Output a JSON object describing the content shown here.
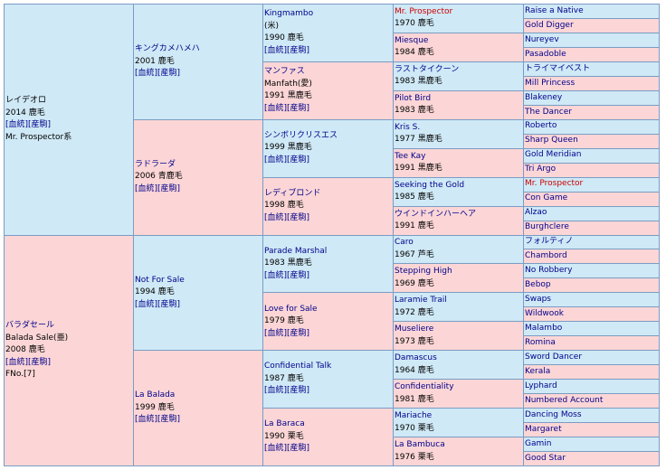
{
  "horse": {
    "name": "レイデオロ",
    "born": "2014 鹿毛",
    "links": "[血統][産駒]",
    "line": "Mr. Prospector系"
  },
  "sire": {
    "name": "キングカメハメハ",
    "born": "2001 鹿毛",
    "links": "[血統][産駒]"
  },
  "sire_sire": {
    "name": "Kingmambo",
    "origin": "(米)",
    "born": "1990 鹿毛",
    "links": "[血統][産駒]"
  },
  "sss": {
    "name": "Mr. Prospector",
    "born": "1970 鹿毛"
  },
  "ssss": {
    "name": "Raise a Native"
  },
  "sssd": {
    "name": "Gold Digger"
  },
  "ssd": {
    "name": "Miesque",
    "born": "1984 鹿毛"
  },
  "ssds": {
    "name": "Nureyev"
  },
  "ssdd": {
    "name": "Pasadoble"
  },
  "sire_dam": {
    "name": "マンファス",
    "alt": "Manfath(愛)",
    "born": "1991 黒鹿毛",
    "links": "[血統][産駒]"
  },
  "sds": {
    "name": "ラストタイクーン",
    "born": "1983 黒鹿毛"
  },
  "sdss": {
    "name": "トライマイベスト"
  },
  "sdsd": {
    "name": "Mill Princess"
  },
  "sdd": {
    "name": "Pilot Bird",
    "born": "1983 鹿毛"
  },
  "sdds": {
    "name": "Blakeney"
  },
  "sddd": {
    "name": "The Dancer"
  },
  "dam": {
    "name": "ラドラーダ",
    "born": "2006 青鹿毛",
    "links": "[血統][産駒]"
  },
  "dam_sire": {
    "name": "シンボリクリスエス",
    "born": "1999 黒鹿毛",
    "links": "[血統][産駒]"
  },
  "dss": {
    "name": "Kris S.",
    "born": "1977 黒鹿毛"
  },
  "dsss": {
    "name": "Roberto"
  },
  "dssd": {
    "name": "Sharp Queen"
  },
  "dsd": {
    "name": "Tee Kay",
    "born": "1991 黒鹿毛"
  },
  "dsds": {
    "name": "Gold Meridian"
  },
  "dsdd": {
    "name": "Tri Argo"
  },
  "dam_dam": {
    "name": "レディブロンド",
    "born": "1998 鹿毛",
    "links": "[血統][産駒]"
  },
  "dds": {
    "name": "Seeking the Gold",
    "born": "1985 鹿毛"
  },
  "ddss": {
    "name": "Mr. Prospector"
  },
  "ddsd": {
    "name": "Con Game"
  },
  "ddd": {
    "name": "ウインドインハーヘア",
    "born": "1991 鹿毛"
  },
  "ddds": {
    "name": "Alzao"
  },
  "dddd": {
    "name": "Burghclere"
  },
  "second": {
    "name": "バラダセール",
    "alt": "Balada Sale(亜)",
    "born": "2008 鹿毛",
    "links": "[血統][産駒]",
    "fno": "FNo.[7]"
  },
  "b_sire": {
    "name": "Not For Sale",
    "born": "1994 鹿毛",
    "links": "[血統][産駒]"
  },
  "b_ss": {
    "name": "Parade Marshal",
    "born": "1983 黒鹿毛",
    "links": "[血統][産駒]"
  },
  "b_sss": {
    "name": "Caro",
    "born": "1967 芦毛"
  },
  "b_ssss": {
    "name": "フォルティノ"
  },
  "b_sssd": {
    "name": "Chambord"
  },
  "b_ssd": {
    "name": "Stepping High",
    "born": "1969 鹿毛"
  },
  "b_ssds": {
    "name": "No Robbery"
  },
  "b_ssdd": {
    "name": "Bebop"
  },
  "b_sd": {
    "name": "Love for Sale",
    "born": "1979 鹿毛",
    "links": "[血統][産駒]"
  },
  "b_sds": {
    "name": "Laramie Trail",
    "born": "1972 鹿毛"
  },
  "b_sdss": {
    "name": "Swaps"
  },
  "b_sdsd": {
    "name": "Wildwook"
  },
  "b_sdd": {
    "name": "Museliere",
    "born": "1973 鹿毛"
  },
  "b_sdds": {
    "name": "Malambo"
  },
  "b_sddd": {
    "name": "Romina"
  },
  "b_dam": {
    "name": "La Balada",
    "born": "1999 鹿毛",
    "links": "[血統][産駒]"
  },
  "b_ds": {
    "name": "Confidential Talk",
    "born": "1987 鹿毛",
    "links": "[血統][産駒]"
  },
  "b_dss": {
    "name": "Damascus",
    "born": "1964 鹿毛"
  },
  "b_dsss": {
    "name": "Sword Dancer"
  },
  "b_dssd": {
    "name": "Kerala"
  },
  "b_dsd": {
    "name": "Confidentiality",
    "born": "1981 鹿毛"
  },
  "b_dsds": {
    "name": "Lyphard"
  },
  "b_dsdd": {
    "name": "Numbered Account"
  },
  "b_dd": {
    "name": "La Baraca",
    "born": "1990 栗毛",
    "links": "[血統][産駒]"
  },
  "b_dds": {
    "name": "Mariache",
    "born": "1970 栗毛"
  },
  "b_ddss": {
    "name": "Dancing Moss"
  },
  "b_ddsd": {
    "name": "Margaret"
  },
  "b_ddd": {
    "name": "La Bambuca",
    "born": "1976 栗毛"
  },
  "b_ddds": {
    "name": "Gamin"
  },
  "b_dddd": {
    "name": "Good Star"
  },
  "colors": {
    "male_bg": "#cfe9f6",
    "female_bg": "#fcd6d6",
    "border": "#7a9cc4",
    "link": "#00008b",
    "highlight": "#cc0000"
  }
}
